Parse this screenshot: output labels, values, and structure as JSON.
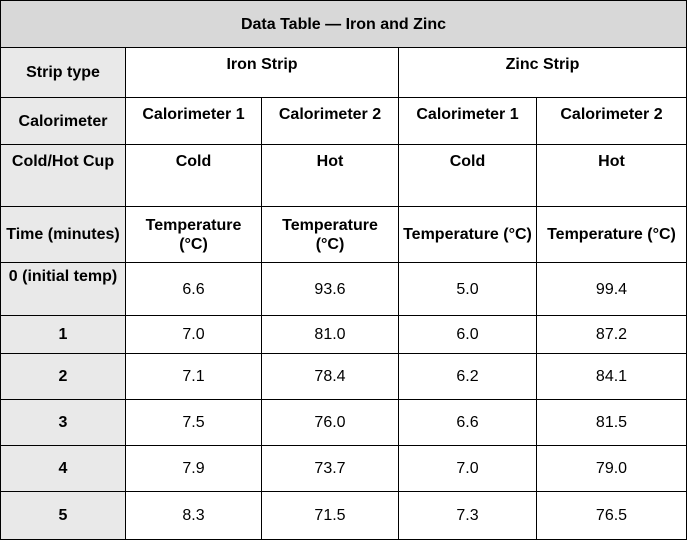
{
  "title": "Data Table — Iron and Zinc",
  "row_headers": {
    "strip_type": "Strip type",
    "calorimeter": "Calorimeter",
    "cup": "Cold/Hot Cup",
    "time": "Time (minutes)"
  },
  "strips": [
    "Iron Strip",
    "Zinc Strip"
  ],
  "calorimeters": [
    "Calorimeter 1",
    "Calorimeter 2",
    "Calorimeter 1",
    "Calorimeter 2"
  ],
  "cups": [
    "Cold",
    "Hot",
    "Cold",
    "Hot"
  ],
  "temp_headers": [
    "Temperature (°C)",
    "Temperature (°C)",
    "Temperature (°C)",
    "Temperature (°C)"
  ],
  "rows": [
    {
      "time": "0 (initial temp)",
      "values": [
        "6.6",
        "93.6",
        "5.0",
        "99.4"
      ]
    },
    {
      "time": "1",
      "values": [
        "7.0",
        "81.0",
        "6.0",
        "87.2"
      ]
    },
    {
      "time": "2",
      "values": [
        "7.1",
        "78.4",
        "6.2",
        "84.1"
      ]
    },
    {
      "time": "3",
      "values": [
        "7.5",
        "76.0",
        "6.6",
        "81.5"
      ]
    },
    {
      "time": "4",
      "values": [
        "7.9",
        "73.7",
        "7.0",
        "79.0"
      ]
    },
    {
      "time": "5",
      "values": [
        "8.3",
        "71.5",
        "7.3",
        "76.5"
      ]
    }
  ]
}
